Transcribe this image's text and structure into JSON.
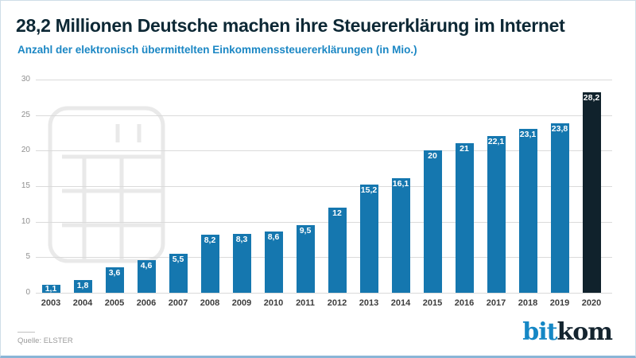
{
  "header": {
    "title": "28,2 Millionen Deutsche machen ihre Steuererklärung im Internet",
    "subtitle": "Anzahl der elektronisch übermittelten Einkommenssteuererklärungen (in Mio.)"
  },
  "chart_data": {
    "type": "bar",
    "title": "Anzahl der elektronisch übermittelten Einkommenssteuererklärungen (in Mio.)",
    "categories": [
      "2003",
      "2004",
      "2005",
      "2006",
      "2007",
      "2008",
      "2009",
      "2010",
      "2011",
      "2012",
      "2013",
      "2014",
      "2015",
      "2016",
      "2017",
      "2018",
      "2019",
      "2020"
    ],
    "values": [
      1.1,
      1.8,
      3.6,
      4.6,
      5.5,
      8.2,
      8.3,
      8.6,
      9.5,
      12,
      15.2,
      16.1,
      20,
      21,
      22.1,
      23.1,
      23.8,
      28.2
    ],
    "value_labels": [
      "1,1",
      "1,8",
      "3,6",
      "4,6",
      "5,5",
      "8,2",
      "8,3",
      "8,6",
      "9,5",
      "12",
      "15,2",
      "16,1",
      "20",
      "21",
      "22,1",
      "23,1",
      "23,8",
      "28,2"
    ],
    "xlabel": "",
    "ylabel": "",
    "ylim": [
      0,
      30
    ],
    "yticks": [
      0,
      5,
      10,
      15,
      20,
      25,
      30
    ],
    "grid": true,
    "legend": "none",
    "bar_color": "#1577af",
    "highlight_index": 17,
    "highlight_color": "#10222c",
    "value_label_color": "#ffffff"
  },
  "watermark": {
    "icon": "calculator-icon",
    "color": "#e9e9e9"
  },
  "footer": {
    "source": "Quelle: ELSTER",
    "logo_part1": "bit",
    "logo_part2": "kom"
  },
  "colors": {
    "title": "#0d2835",
    "subtitle": "#1b87c4",
    "gridline": "#dadada",
    "axis_text": "#8f8f8f",
    "year_text": "#3d3d3d",
    "border": "#cfdde8",
    "border_bottom": "#8ab5d6",
    "logo_blue": "#1587c5",
    "logo_dark": "#14242f"
  }
}
